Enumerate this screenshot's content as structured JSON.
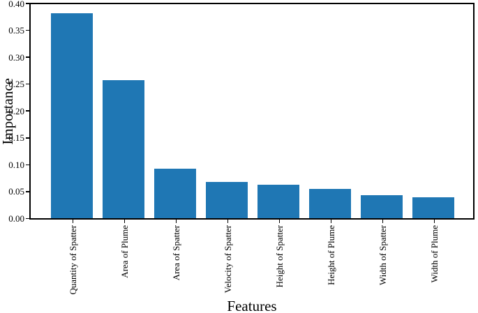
{
  "figure": {
    "background": "#ffffff",
    "axis_color": "#000000",
    "text_color": "#000000"
  },
  "chart_data": {
    "type": "bar",
    "title": "",
    "xlabel": "Features",
    "ylabel": "Importance",
    "categories": [
      "Quantity of Spatter",
      "Area of Plume",
      "Area of Spatter",
      "Velocity of Spatter",
      "Height of Spatter",
      "Height of Plume",
      "Width of Spatter",
      "Width of Plume"
    ],
    "values": [
      0.382,
      0.257,
      0.092,
      0.068,
      0.062,
      0.055,
      0.043,
      0.039
    ],
    "ylim": [
      0,
      0.4
    ],
    "yticks": {
      "values": [
        0.0,
        0.05,
        0.1,
        0.15,
        0.2,
        0.25,
        0.3,
        0.35,
        0.4
      ],
      "labels": [
        "0.00",
        "0.05",
        "0.10",
        "0.15",
        "0.20",
        "0.25",
        "0.30",
        "0.35",
        "0.40"
      ]
    },
    "bar_color": "#1f77b4",
    "grid": false,
    "legend": null,
    "x_tick_rotation_deg": 90
  }
}
